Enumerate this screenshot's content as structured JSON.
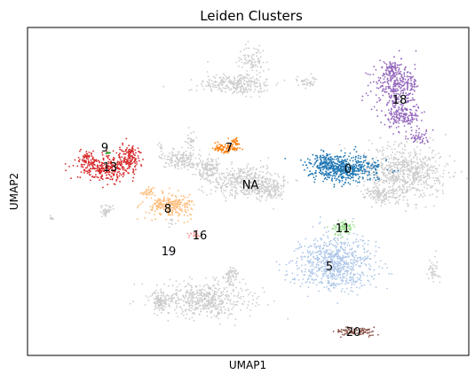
{
  "chart_data": {
    "type": "scatter",
    "title": "Leiden Clusters",
    "xlabel": "UMAP1",
    "ylabel": "UMAP2",
    "grid": false,
    "legend": "on data",
    "ticks": "none",
    "background_color": "#cccccc",
    "clusters": [
      {
        "label": "0",
        "color": "#1f77b4"
      },
      {
        "label": "5",
        "color": "#aec7e8"
      },
      {
        "label": "7",
        "color": "#ff7f0e"
      },
      {
        "label": "8",
        "color": "#ffbb78"
      },
      {
        "label": "9",
        "color": "#2ca02c"
      },
      {
        "label": "11",
        "color": "#98df8a"
      },
      {
        "label": "13",
        "color": "#d62728"
      },
      {
        "label": "16",
        "color": "#ff9896"
      },
      {
        "label": "18",
        "color": "#9467bd"
      },
      {
        "label": "19",
        "color": "#c5b0d5"
      },
      {
        "label": "20",
        "color": "#8c564b"
      },
      {
        "label": "NA",
        "color": "#cccccc"
      }
    ]
  }
}
